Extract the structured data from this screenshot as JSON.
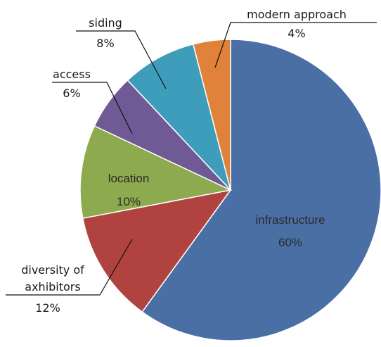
{
  "chart_data": {
    "type": "pie",
    "slices": [
      {
        "label": "infrastructure",
        "percent_label": "60%",
        "value": 60,
        "color": "#4a6fa5"
      },
      {
        "label": "diversity of axhibitors",
        "percent_label": "12%",
        "value": 12,
        "color": "#b04340"
      },
      {
        "label": "location",
        "percent_label": "10%",
        "value": 10,
        "color": "#8daa4f"
      },
      {
        "label": "access",
        "percent_label": "6%",
        "value": 6,
        "color": "#6f5a96"
      },
      {
        "label": "siding",
        "percent_label": "8%",
        "value": 8,
        "color": "#3e9dba"
      },
      {
        "label": "modern approach",
        "percent_label": "4%",
        "value": 4,
        "color": "#e0823a"
      }
    ],
    "annotations": {
      "diversity_line1": "diversity of",
      "diversity_line2": "axhibitors"
    }
  }
}
